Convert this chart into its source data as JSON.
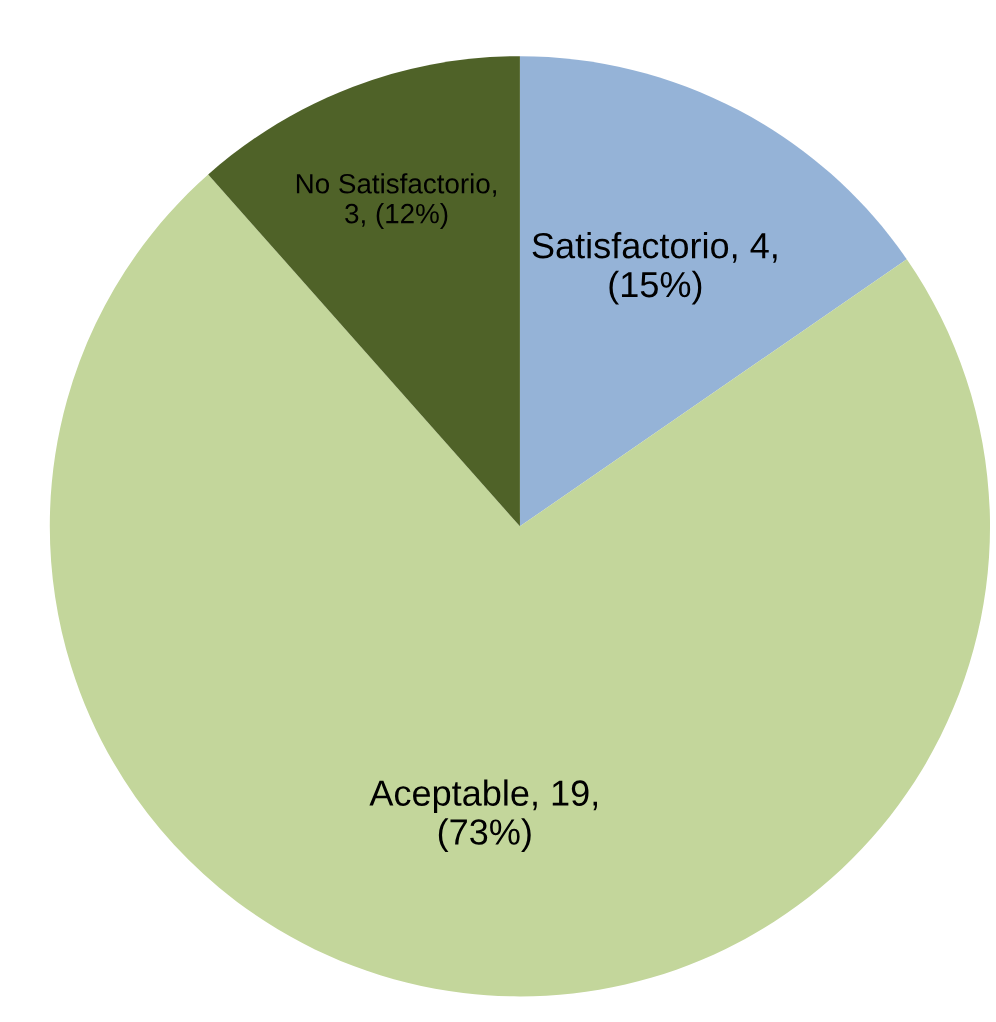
{
  "chart_data": {
    "type": "pie",
    "categories": [
      "Satisfactorio",
      "Aceptable",
      "No Satisfactorio"
    ],
    "values": [
      4,
      19,
      3
    ],
    "colors": [
      "#95b3d7",
      "#c3d69b",
      "#4f6228"
    ],
    "value_labels": [
      ", 4,\n(15%)",
      ", 19,\n(73%)",
      ",\n3, (12%)"
    ],
    "legend": false
  }
}
